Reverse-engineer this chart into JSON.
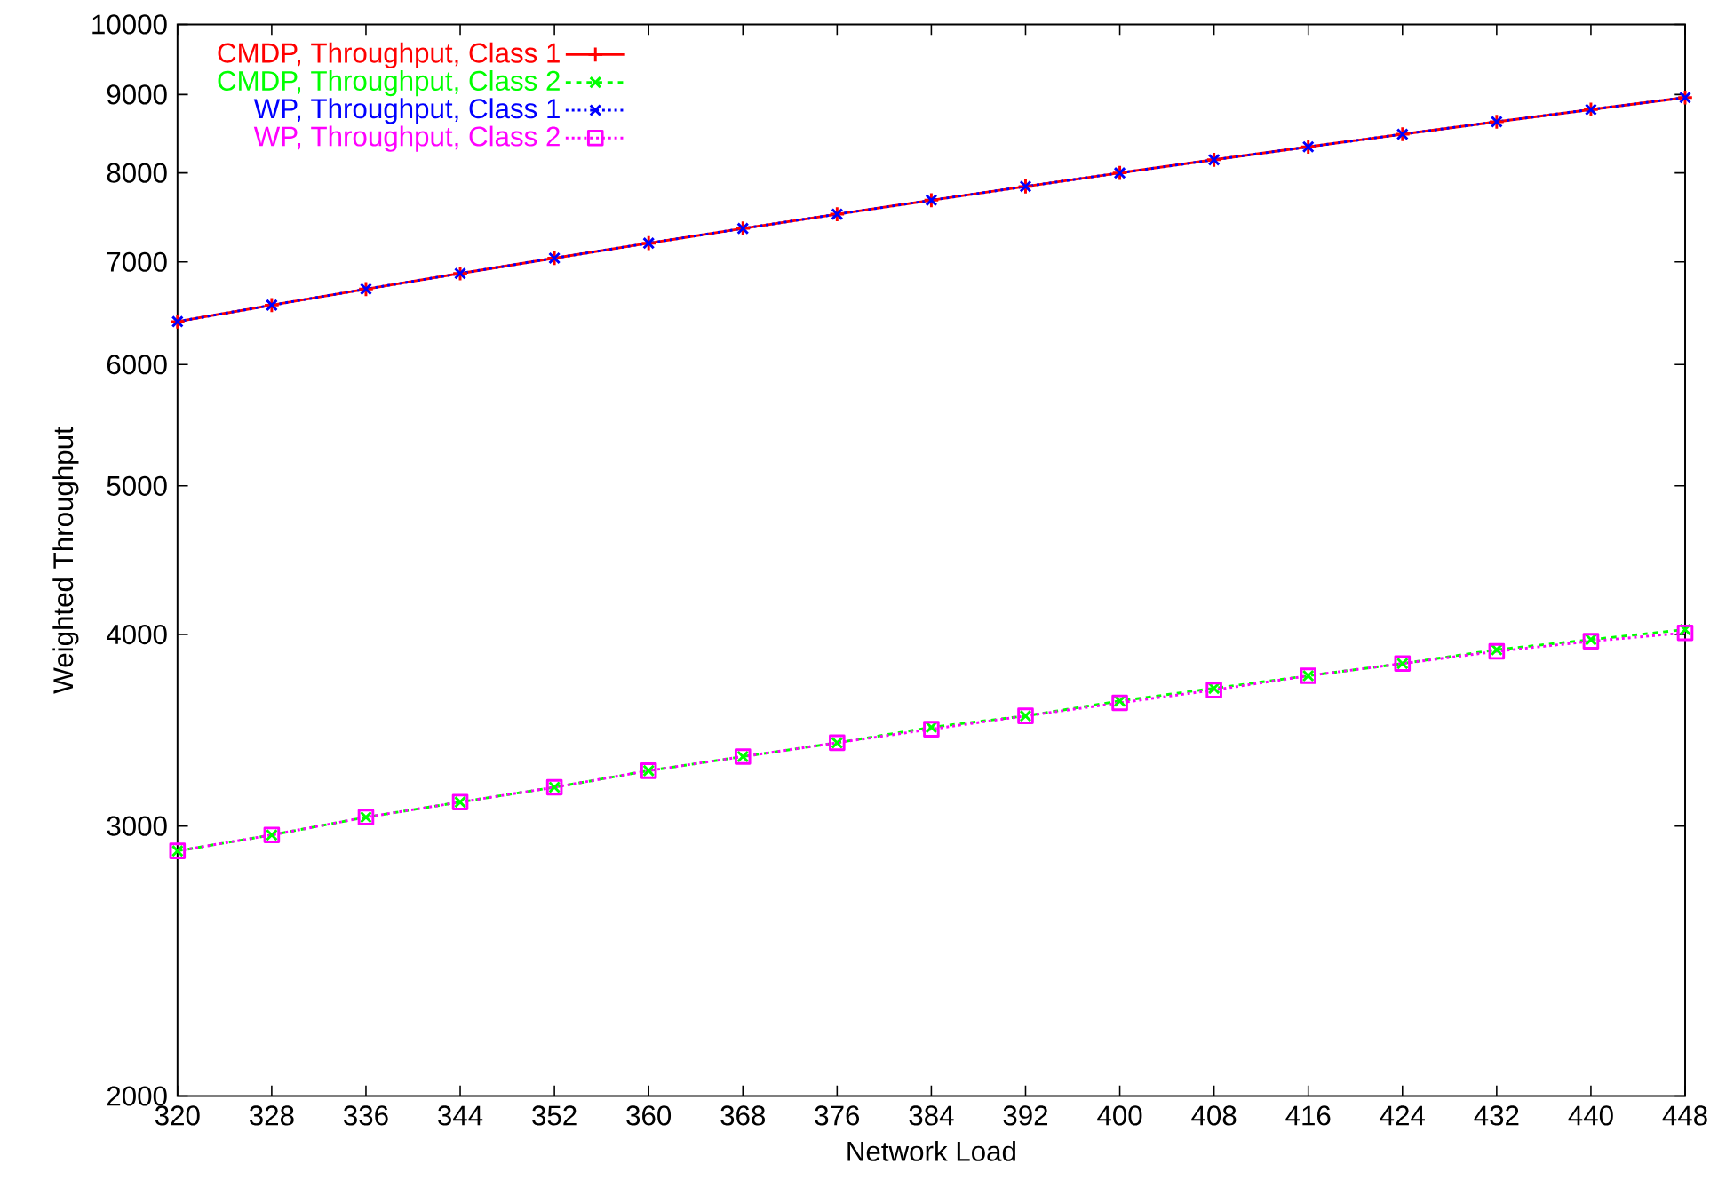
{
  "chart_data": {
    "type": "line",
    "xlabel": "Network Load",
    "ylabel": "Weighted Throughput",
    "x": [
      320,
      328,
      336,
      344,
      352,
      360,
      368,
      376,
      384,
      392,
      400,
      408,
      416,
      424,
      432,
      440,
      448
    ],
    "series": [
      {
        "name": "CMDP, Throughput, Class 1",
        "color": "#ff0000",
        "marker": "plus",
        "line_style": "solid",
        "values": [
          6400,
          6560,
          6720,
          6880,
          7040,
          7200,
          7360,
          7520,
          7680,
          7840,
          8000,
          8160,
          8320,
          8480,
          8640,
          8800,
          8960
        ]
      },
      {
        "name": "CMDP, Throughput, Class 2",
        "color": "#00ff00",
        "marker": "cross",
        "line_style": "dashed",
        "values": [
          2890,
          2960,
          3040,
          3110,
          3180,
          3260,
          3330,
          3400,
          3480,
          3540,
          3620,
          3690,
          3760,
          3830,
          3910,
          3970,
          4030
        ]
      },
      {
        "name": "WP, Throughput, Class 1",
        "color": "#0000ff",
        "marker": "cross",
        "line_style": "dotted",
        "values": [
          6400,
          6560,
          6720,
          6880,
          7040,
          7200,
          7360,
          7520,
          7680,
          7840,
          8000,
          8160,
          8320,
          8480,
          8640,
          8800,
          8960
        ]
      },
      {
        "name": "WP, Throughput, Class 2",
        "color": "#ff00ff",
        "marker": "square",
        "line_style": "dotted",
        "values": [
          2890,
          2960,
          3040,
          3110,
          3180,
          3260,
          3330,
          3400,
          3470,
          3540,
          3610,
          3680,
          3760,
          3830,
          3900,
          3960,
          4010
        ]
      }
    ],
    "log": "y",
    "legend": "top left",
    "grid": false,
    "xlim": [
      320,
      448
    ],
    "xticks": [
      320,
      328,
      336,
      344,
      352,
      360,
      368,
      376,
      384,
      392,
      400,
      408,
      416,
      424,
      432,
      440,
      448
    ],
    "ylim": [
      2000,
      10000
    ],
    "yticks": [
      2000,
      3000,
      4000,
      5000,
      6000,
      7000,
      8000,
      9000,
      10000
    ]
  }
}
